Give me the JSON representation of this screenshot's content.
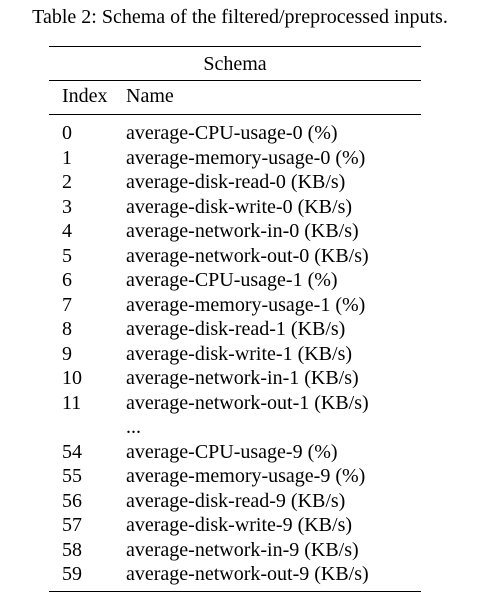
{
  "caption": "Table 2: Schema of the filtered/preprocessed inputs.",
  "table": {
    "title": "Schema",
    "headers": {
      "index": "Index",
      "name": "Name"
    },
    "rows": [
      {
        "index": "0",
        "name": "average-CPU-usage-0 (%)"
      },
      {
        "index": "1",
        "name": "average-memory-usage-0 (%)"
      },
      {
        "index": "2",
        "name": "average-disk-read-0 (KB/s)"
      },
      {
        "index": "3",
        "name": "average-disk-write-0 (KB/s)"
      },
      {
        "index": "4",
        "name": "average-network-in-0 (KB/s)"
      },
      {
        "index": "5",
        "name": "average-network-out-0 (KB/s)"
      },
      {
        "index": "6",
        "name": "average-CPU-usage-1 (%)"
      },
      {
        "index": "7",
        "name": "average-memory-usage-1 (%)"
      },
      {
        "index": "8",
        "name": "average-disk-read-1 (KB/s)"
      },
      {
        "index": "9",
        "name": "average-disk-write-1 (KB/s)"
      },
      {
        "index": "10",
        "name": "average-network-in-1 (KB/s)"
      },
      {
        "index": "11",
        "name": "average-network-out-1 (KB/s)"
      },
      {
        "index": "",
        "name": "..."
      },
      {
        "index": "54",
        "name": "average-CPU-usage-9 (%)"
      },
      {
        "index": "55",
        "name": "average-memory-usage-9 (%)"
      },
      {
        "index": "56",
        "name": "average-disk-read-9 (KB/s)"
      },
      {
        "index": "57",
        "name": "average-disk-write-9 (KB/s)"
      },
      {
        "index": "58",
        "name": "average-network-in-9 (KB/s)"
      },
      {
        "index": "59",
        "name": "average-network-out-9 (KB/s)"
      }
    ]
  }
}
